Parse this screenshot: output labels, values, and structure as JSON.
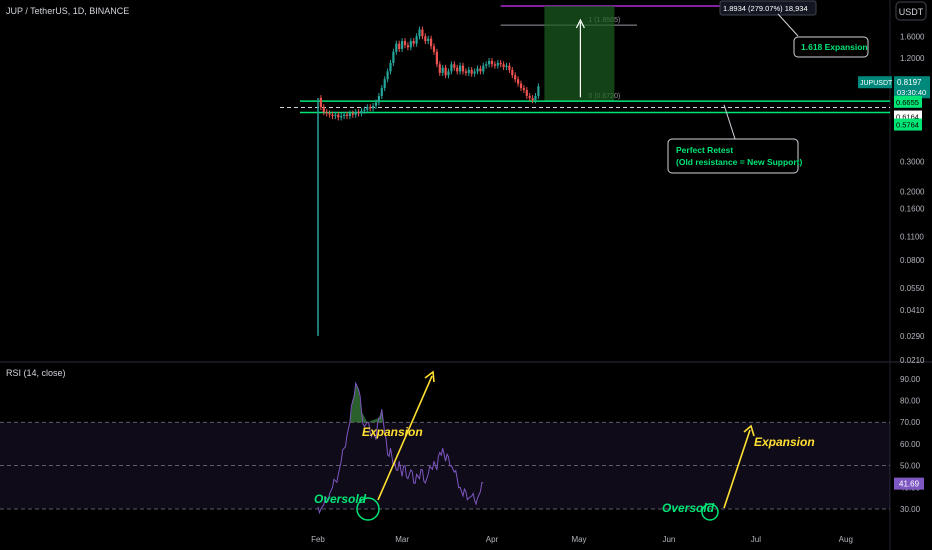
{
  "header": {
    "title": "JUP / TetherUS, 1D, BINANCE",
    "currency_button": "USDT"
  },
  "colors": {
    "up": "#26a69a",
    "down": "#ef5350",
    "green_line": "#00e676",
    "fib_top": "#cc33ff",
    "rsi_line": "#7e57c2",
    "annotation_yellow": "#ffe033",
    "oversold_green": "#00e676"
  },
  "chart_data": [
    {
      "type": "candlestick",
      "panel": "price",
      "y_scale": "log",
      "ylim": [
        0.021,
        2.6
      ],
      "y_ticks": [
        "2.2000",
        "1.6000",
        "1.2000",
        "0.9000",
        "0.3000",
        "0.2000",
        "0.1600",
        "0.1100",
        "0.0800",
        "0.0550",
        "0.0410",
        "0.0290",
        "0.0210"
      ],
      "x_labels": [
        "Feb",
        "Mar",
        "Apr",
        "May",
        "Jun",
        "Jul",
        "Aug"
      ],
      "symbol_badge": "JUPUSDT",
      "last_price": "0.8197",
      "countdown": "03:30:40",
      "price_labels": [
        "0.6655",
        "0.6164",
        "0.5764"
      ],
      "fib_levels": [
        {
          "label": "1 (1.8565)",
          "value": 1.8565
        },
        {
          "label": "0 (0.6720)",
          "value": 0.672
        }
      ],
      "fib_extension_top": 2.4,
      "projection": {
        "label": "1.8934 (279.07%) 18,934",
        "from": 0.67,
        "to": 2.4
      },
      "support_levels": [
        0.672,
        0.6655,
        0.5764
      ],
      "retest_level": 0.6164,
      "annotations": [
        "Perfect Retest",
        "(Old resistance = New Support)",
        "1.618 Expansion"
      ],
      "close_path": [
        [
          31,
          0.7
        ],
        [
          32,
          0.62
        ],
        [
          33,
          0.58
        ],
        [
          34,
          0.57
        ],
        [
          35,
          0.56
        ],
        [
          36,
          0.55
        ],
        [
          37,
          0.56
        ],
        [
          38,
          0.54
        ],
        [
          39,
          0.55
        ],
        [
          40,
          0.56
        ],
        [
          41,
          0.55
        ],
        [
          42,
          0.57
        ],
        [
          43,
          0.56
        ],
        [
          44,
          0.58
        ],
        [
          45,
          0.57
        ],
        [
          46,
          0.59
        ],
        [
          47,
          0.6
        ],
        [
          48,
          0.62
        ],
        [
          49,
          0.61
        ],
        [
          50,
          0.63
        ],
        [
          51,
          0.66
        ],
        [
          52,
          0.72
        ],
        [
          53,
          0.8
        ],
        [
          54,
          0.9
        ],
        [
          55,
          1.0
        ],
        [
          56,
          1.12
        ],
        [
          57,
          1.3
        ],
        [
          58,
          1.45
        ],
        [
          59,
          1.35
        ],
        [
          60,
          1.5
        ],
        [
          61,
          1.42
        ],
        [
          62,
          1.38
        ],
        [
          63,
          1.5
        ],
        [
          64,
          1.45
        ],
        [
          65,
          1.6
        ],
        [
          66,
          1.75
        ],
        [
          67,
          1.6
        ],
        [
          68,
          1.5
        ],
        [
          69,
          1.55
        ],
        [
          70,
          1.4
        ],
        [
          71,
          1.3
        ],
        [
          72,
          1.1
        ],
        [
          73,
          0.98
        ],
        [
          74,
          1.05
        ],
        [
          75,
          0.95
        ],
        [
          76,
          1.0
        ],
        [
          77,
          1.1
        ],
        [
          78,
          1.05
        ],
        [
          79,
          1.0
        ],
        [
          80,
          1.08
        ],
        [
          81,
          1.0
        ],
        [
          82,
          0.98
        ],
        [
          83,
          1.02
        ],
        [
          84,
          0.97
        ],
        [
          85,
          1.0
        ],
        [
          86,
          1.04
        ],
        [
          87,
          1.0
        ],
        [
          88,
          1.08
        ],
        [
          89,
          1.1
        ],
        [
          90,
          1.15
        ],
        [
          91,
          1.1
        ],
        [
          92,
          1.08
        ],
        [
          93,
          1.12
        ],
        [
          94,
          1.1
        ],
        [
          95,
          1.06
        ],
        [
          96,
          1.08
        ],
        [
          97,
          1.02
        ],
        [
          98,
          0.95
        ],
        [
          99,
          0.9
        ],
        [
          100,
          0.85
        ],
        [
          101,
          0.8
        ],
        [
          102,
          0.78
        ],
        [
          103,
          0.72
        ],
        [
          104,
          0.7
        ],
        [
          105,
          0.68
        ],
        [
          106,
          0.72
        ],
        [
          107,
          0.82
        ]
      ]
    },
    {
      "type": "line",
      "panel": "rsi",
      "title": "RSI (14, close)",
      "ylim": [
        24,
        95
      ],
      "y_ticks": [
        "90.00",
        "80.00",
        "70.00",
        "60.00",
        "50.00",
        "40.00",
        "30.00"
      ],
      "band": [
        30,
        70
      ],
      "current_value": "41.69",
      "annotations": [
        "Expansion",
        "Oversold",
        "Oversold",
        "Expansion"
      ],
      "series": [
        {
          "values": [
            [
              31,
              31
            ],
            [
              32,
              30
            ],
            [
              33,
              32
            ],
            [
              34,
              35
            ],
            [
              35,
              37
            ],
            [
              36,
              40
            ],
            [
              37,
              43
            ],
            [
              38,
              46
            ],
            [
              39,
              52
            ],
            [
              40,
              58
            ],
            [
              41,
              64
            ],
            [
              42,
              70
            ],
            [
              43,
              80
            ],
            [
              44,
              88
            ],
            [
              45,
              85
            ],
            [
              46,
              75
            ],
            [
              47,
              68
            ],
            [
              48,
              70
            ],
            [
              49,
              65
            ],
            [
              50,
              66
            ],
            [
              51,
              62
            ],
            [
              52,
              72
            ],
            [
              53,
              76
            ],
            [
              54,
              65
            ],
            [
              55,
              55
            ],
            [
              56,
              58
            ],
            [
              57,
              50
            ],
            [
              58,
              48
            ],
            [
              59,
              52
            ],
            [
              60,
              45
            ],
            [
              61,
              50
            ],
            [
              62,
              44
            ],
            [
              63,
              48
            ],
            [
              64,
              42
            ],
            [
              65,
              46
            ],
            [
              66,
              44
            ],
            [
              67,
              48
            ],
            [
              68,
              42
            ],
            [
              69,
              46
            ],
            [
              70,
              49
            ],
            [
              71,
              52
            ],
            [
              72,
              48
            ],
            [
              73,
              56
            ],
            [
              74,
              58
            ],
            [
              75,
              52
            ],
            [
              76,
              54
            ],
            [
              77,
              50
            ],
            [
              78,
              47
            ],
            [
              79,
              44
            ],
            [
              80,
              40
            ],
            [
              81,
              36
            ],
            [
              82,
              38
            ],
            [
              83,
              35
            ],
            [
              84,
              36
            ],
            [
              85,
              34
            ],
            [
              86,
              35
            ],
            [
              87,
              38
            ],
            [
              88,
              42
            ]
          ]
        }
      ]
    }
  ]
}
